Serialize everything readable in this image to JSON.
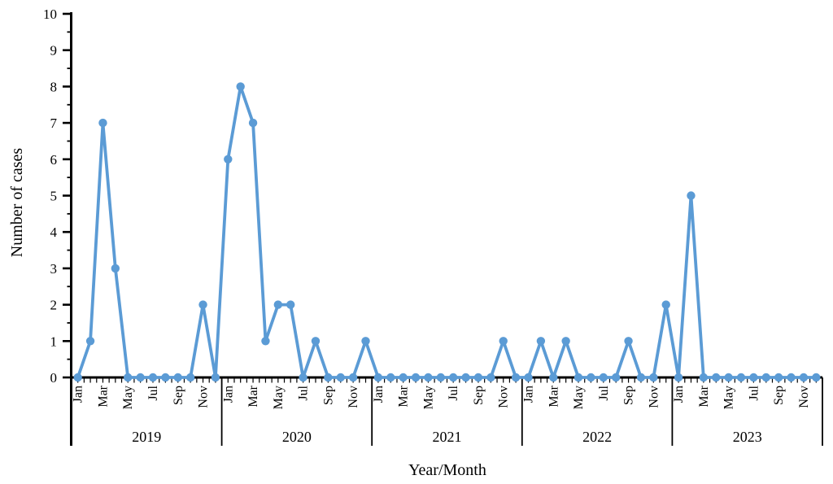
{
  "chart_data": {
    "type": "line",
    "title": "",
    "xlabel": "Year/Month",
    "ylabel": "Number of cases",
    "ylim": [
      0,
      10
    ],
    "yticks": [
      0,
      1,
      2,
      3,
      4,
      5,
      6,
      7,
      8,
      9,
      10
    ],
    "grid": false,
    "legend": "none",
    "marker": "circle",
    "years": [
      "2019",
      "2020",
      "2021",
      "2022",
      "2023"
    ],
    "months": [
      "Jan",
      "Feb",
      "Mar",
      "Apr",
      "May",
      "Jun",
      "Jul",
      "Aug",
      "Sep",
      "Oct",
      "Nov",
      "Dec"
    ],
    "month_tick_labels_shown": [
      "Jan",
      "Mar",
      "May",
      "Jul",
      "Sep",
      "Nov"
    ],
    "series": [
      {
        "name": "Number of cases",
        "color": "#5B9BD5",
        "values_by_year": {
          "2019": [
            0,
            1,
            7,
            3,
            0,
            0,
            0,
            0,
            0,
            0,
            2,
            0
          ],
          "2020": [
            6,
            8,
            7,
            1,
            2,
            2,
            0,
            1,
            0,
            0,
            0,
            1
          ],
          "2021": [
            0,
            0,
            0,
            0,
            0,
            0,
            0,
            0,
            0,
            0,
            1,
            0
          ],
          "2022": [
            0,
            1,
            0,
            1,
            0,
            0,
            0,
            0,
            1,
            0,
            0,
            2
          ],
          "2023": [
            0,
            5,
            0,
            0,
            0,
            0,
            0,
            0,
            0,
            0,
            0,
            0
          ]
        }
      }
    ],
    "colors": {
      "line": "#5B9BD5",
      "axis": "#000000",
      "background": "#FFFFFF"
    }
  }
}
